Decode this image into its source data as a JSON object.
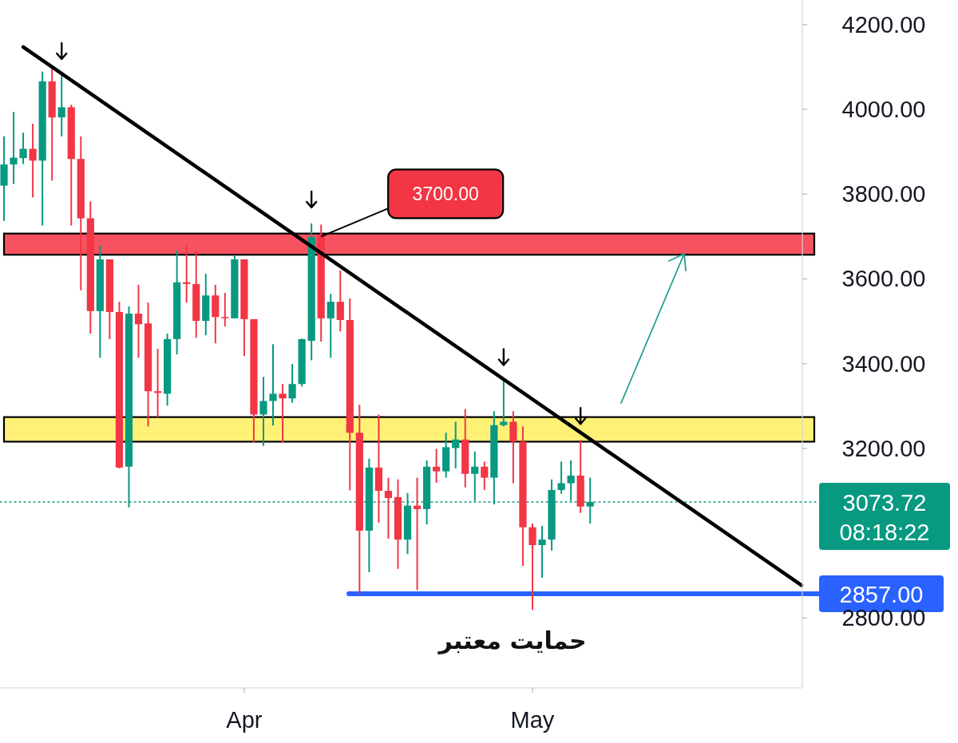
{
  "chart_data": {
    "type": "candlestick",
    "x": [
      "--03-07",
      "--03-08",
      "--03-09",
      "--03-10",
      "--03-11",
      "--03-12",
      "--03-13",
      "--03-14",
      "--03-15",
      "--03-16",
      "--03-17",
      "--03-18",
      "--03-19",
      "--03-20",
      "--03-21",
      "--03-22",
      "--03-23",
      "--03-24",
      "--03-25",
      "--03-26",
      "--03-27",
      "--03-28",
      "--03-29",
      "--03-30",
      "--03-31",
      "--04-01",
      "--04-02",
      "--04-03",
      "--04-04",
      "--04-05",
      "--04-06",
      "--04-07",
      "--04-08",
      "--04-09",
      "--04-10",
      "--04-11",
      "--04-12",
      "--04-13",
      "--04-14",
      "--04-15",
      "--04-16",
      "--04-17",
      "--04-18",
      "--04-19",
      "--04-20",
      "--04-21",
      "--04-22",
      "--04-23",
      "--04-24",
      "--04-25",
      "--04-26",
      "--04-27",
      "--04-28",
      "--04-29",
      "--04-30",
      "--05-01",
      "--05-02",
      "--05-03",
      "--05-04",
      "--05-05",
      "--05-06",
      "--05-07"
    ],
    "ohlc": [
      [
        3820,
        3936,
        3737,
        3870
      ],
      [
        3870,
        3994,
        3824,
        3886
      ],
      [
        3885,
        3945,
        3871,
        3907
      ],
      [
        3907,
        3966,
        3792,
        3879
      ],
      [
        3879,
        4089,
        3726,
        4066
      ],
      [
        4066,
        4096,
        3832,
        3981
      ],
      [
        3981,
        4081,
        3936,
        4005
      ],
      [
        4005,
        4011,
        3726,
        3883
      ],
      [
        3883,
        3936,
        3573,
        3743
      ],
      [
        3743,
        3783,
        3471,
        3524
      ],
      [
        3524,
        3679,
        3414,
        3646
      ],
      [
        3646,
        3646,
        3458,
        3522
      ],
      [
        3522,
        3546,
        3153,
        3155
      ],
      [
        3157,
        3535,
        3061,
        3518
      ],
      [
        3518,
        3586,
        3414,
        3493
      ],
      [
        3495,
        3544,
        3252,
        3335
      ],
      [
        3335,
        3435,
        3274,
        3331
      ],
      [
        3329,
        3471,
        3301,
        3458
      ],
      [
        3458,
        3667,
        3422,
        3592
      ],
      [
        3592,
        3679,
        3544,
        3588
      ],
      [
        3588,
        3667,
        3461,
        3501
      ],
      [
        3501,
        3612,
        3467,
        3561
      ],
      [
        3561,
        3586,
        3448,
        3510
      ],
      [
        3510,
        3567,
        3488,
        3508
      ],
      [
        3507,
        3656,
        3507,
        3646
      ],
      [
        3646,
        3646,
        3418,
        3505
      ],
      [
        3505,
        3505,
        3214,
        3280
      ],
      [
        3280,
        3369,
        3206,
        3312
      ],
      [
        3312,
        3446,
        3254,
        3329
      ],
      [
        3329,
        3352,
        3214,
        3318
      ],
      [
        3318,
        3399,
        3308,
        3352
      ],
      [
        3352,
        3459,
        3346,
        3458
      ],
      [
        3454,
        3731,
        3408,
        3699
      ],
      [
        3703,
        3728,
        3452,
        3507
      ],
      [
        3507,
        3565,
        3414,
        3546
      ],
      [
        3546,
        3620,
        3476,
        3503
      ],
      [
        3503,
        3554,
        3101,
        3237
      ],
      [
        3237,
        3303,
        2857,
        3006
      ],
      [
        3006,
        3176,
        2908,
        3155
      ],
      [
        3155,
        3280,
        3025,
        3100
      ],
      [
        3100,
        3131,
        2987,
        3083
      ],
      [
        3085,
        3127,
        2916,
        2985
      ],
      [
        2985,
        3095,
        2951,
        3065
      ],
      [
        3065,
        3131,
        2866,
        3057
      ],
      [
        3057,
        3172,
        3021,
        3157
      ],
      [
        3157,
        3199,
        3119,
        3146
      ],
      [
        3146,
        3237,
        3131,
        3203
      ],
      [
        3201,
        3263,
        3153,
        3221
      ],
      [
        3221,
        3293,
        3108,
        3140
      ],
      [
        3140,
        3193,
        3076,
        3157
      ],
      [
        3157,
        3169,
        3102,
        3131
      ],
      [
        3131,
        3288,
        3068,
        3255
      ],
      [
        3255,
        3359,
        3252,
        3263
      ],
      [
        3263,
        3288,
        3118,
        3216
      ],
      [
        3216,
        3252,
        2923,
        3014
      ],
      [
        3014,
        3023,
        2819,
        2972
      ],
      [
        2972,
        3017,
        2895,
        2985
      ],
      [
        2985,
        3127,
        2959,
        3102
      ],
      [
        3102,
        3169,
        3093,
        3118
      ],
      [
        3118,
        3172,
        3076,
        3136
      ],
      [
        3136,
        3220,
        3048,
        3063
      ],
      [
        3063,
        3131,
        3023,
        3073.72
      ]
    ],
    "colors": [
      "#089981",
      "#089981",
      "#089981",
      "#f23645",
      "#089981",
      "#f23645",
      "#089981",
      "#f23645",
      "#f23645",
      "#f23645",
      "#089981",
      "#f23645",
      "#f23645",
      "#089981",
      "#f23645",
      "#f23645",
      "#f23645",
      "#089981",
      "#089981",
      "#f23645",
      "#f23645",
      "#089981",
      "#f23645",
      "#f23645",
      "#089981",
      "#f23645",
      "#f23645",
      "#089981",
      "#089981",
      "#f23645",
      "#089981",
      "#089981",
      "#089981",
      "#f23645",
      "#089981",
      "#f23645",
      "#f23645",
      "#f23645",
      "#089981",
      "#f23645",
      "#f23645",
      "#f23645",
      "#089981",
      "#f23645",
      "#089981",
      "#f23645",
      "#089981",
      "#089981",
      "#f23645",
      "#089981",
      "#f23645",
      "#089981",
      "#089981",
      "#f23645",
      "#f23645",
      "#f23645",
      "#089981",
      "#089981",
      "#089981",
      "#089981",
      "#f23645",
      "#089981"
    ],
    "series": [
      {
        "type": "line",
        "color": "#000000",
        "x": [
          "--03-09",
          "--05-29"
        ],
        "values": [
          4147,
          2877
        ]
      }
    ],
    "xlim": [
      "--03-07",
      "--05-29"
    ],
    "ylim": [
      2635,
      4258
    ],
    "xticks": [
      {
        "value": "--04-01",
        "label": "Apr"
      },
      {
        "value": "--05-01",
        "label": "May"
      }
    ],
    "yticks": [
      {
        "value": 2800,
        "label": "2800.00"
      },
      {
        "value": 3200,
        "label": "3200.00"
      },
      {
        "value": 3400,
        "label": "3400.00"
      },
      {
        "value": 3600,
        "label": "3600.00"
      },
      {
        "value": 3800,
        "label": "3800.00"
      },
      {
        "value": 4000,
        "label": "4000.00"
      },
      {
        "value": 4200,
        "label": "4200.00"
      }
    ],
    "bands": [
      {
        "axis": "y",
        "from": 3216,
        "to": 3274,
        "color": "#fff176"
      },
      {
        "axis": "y",
        "from": 3657,
        "to": 3707,
        "color": "#f7525f"
      }
    ],
    "ref_lines": [
      {
        "axis": "y",
        "value": 3073.72,
        "label": "3073.72",
        "color": "#089981",
        "line_style": "dotted"
      },
      {
        "axis": "y",
        "value": 2857,
        "label": "2857.00",
        "color": "#2962ff",
        "line_style": "solid"
      }
    ],
    "annotations": [
      {
        "text": "3700.00",
        "x": "--04-09",
        "y": 3700
      },
      "08:18:22",
      "حمایت معتبر"
    ]
  }
}
